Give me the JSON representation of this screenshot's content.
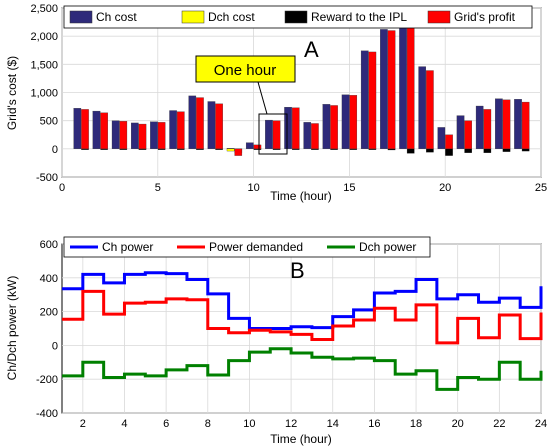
{
  "chart_data": [
    {
      "type": "bar",
      "panel_label": "A",
      "xlabel": "Time (hour)",
      "ylabel": "Grid's cost ($)",
      "xlim": [
        0,
        25
      ],
      "ylim": [
        -500,
        2500
      ],
      "xticks": [
        0,
        5,
        10,
        15,
        20,
        25
      ],
      "yticks": [
        -500,
        0,
        500,
        1000,
        1500,
        2000,
        2500
      ],
      "grid": true,
      "legend_position": "top",
      "annotation": "One hour",
      "x": [
        1,
        2,
        3,
        4,
        5,
        6,
        7,
        8,
        9,
        10,
        11,
        12,
        13,
        14,
        15,
        16,
        17,
        18,
        19,
        20,
        21,
        22,
        23,
        24
      ],
      "series": [
        {
          "name": "Ch cost",
          "color": "#2e2a7a",
          "values": [
            720,
            670,
            500,
            460,
            480,
            680,
            940,
            840,
            10,
            110,
            510,
            740,
            470,
            790,
            960,
            1740,
            2120,
            2240,
            1460,
            380,
            590,
            760,
            890,
            880
          ]
        },
        {
          "name": "Dch cost",
          "color": "#ffff00",
          "values": [
            0,
            0,
            0,
            0,
            0,
            0,
            0,
            0,
            -40,
            0,
            0,
            0,
            0,
            0,
            0,
            0,
            0,
            0,
            0,
            0,
            0,
            0,
            0,
            0
          ]
        },
        {
          "name": "Reward to the IPL",
          "color": "#000000",
          "values": [
            -15,
            -15,
            -15,
            -15,
            -15,
            -15,
            -15,
            -15,
            -70,
            -15,
            -15,
            -15,
            -15,
            -15,
            -15,
            -15,
            -20,
            -80,
            -60,
            -120,
            -70,
            -70,
            -50,
            -40
          ]
        },
        {
          "name": "Grid's profit",
          "color": "#ff0000",
          "values": [
            700,
            640,
            490,
            440,
            470,
            660,
            910,
            800,
            -120,
            70,
            500,
            730,
            450,
            770,
            950,
            1720,
            2100,
            2150,
            1390,
            250,
            500,
            700,
            870,
            830
          ]
        }
      ]
    },
    {
      "type": "line",
      "panel_label": "B",
      "xlabel": "Time (hour)",
      "ylabel": "Ch/Dch power (kW)",
      "xlim": [
        1,
        24
      ],
      "ylim": [
        -400,
        600
      ],
      "xticks": [
        2,
        4,
        6,
        8,
        10,
        12,
        14,
        16,
        18,
        20,
        22,
        24
      ],
      "yticks": [
        -400,
        -200,
        0,
        200,
        400,
        600
      ],
      "grid": true,
      "legend_position": "top",
      "step": true,
      "x": [
        1,
        2,
        3,
        4,
        5,
        6,
        7,
        8,
        9,
        10,
        11,
        12,
        13,
        14,
        15,
        16,
        17,
        18,
        19,
        20,
        21,
        22,
        23,
        24
      ],
      "series": [
        {
          "name": "Ch power",
          "color": "#0000ff",
          "values": [
            335,
            420,
            370,
            420,
            430,
            425,
            390,
            305,
            160,
            100,
            100,
            110,
            105,
            170,
            210,
            310,
            320,
            390,
            275,
            300,
            255,
            280,
            225,
            350
          ]
        },
        {
          "name": "Power demanded",
          "color": "#ff0000",
          "values": [
            155,
            320,
            185,
            250,
            255,
            275,
            270,
            100,
            75,
            90,
            80,
            65,
            35,
            115,
            150,
            220,
            150,
            240,
            15,
            160,
            45,
            180,
            40,
            195
          ]
        },
        {
          "name": "Dch power",
          "color": "#008000",
          "values": [
            -180,
            -100,
            -190,
            -170,
            -180,
            -145,
            -120,
            -175,
            -90,
            -40,
            -20,
            -45,
            -70,
            -80,
            -75,
            -90,
            -170,
            -150,
            -260,
            -190,
            -200,
            -100,
            -200,
            -150
          ]
        }
      ]
    }
  ]
}
